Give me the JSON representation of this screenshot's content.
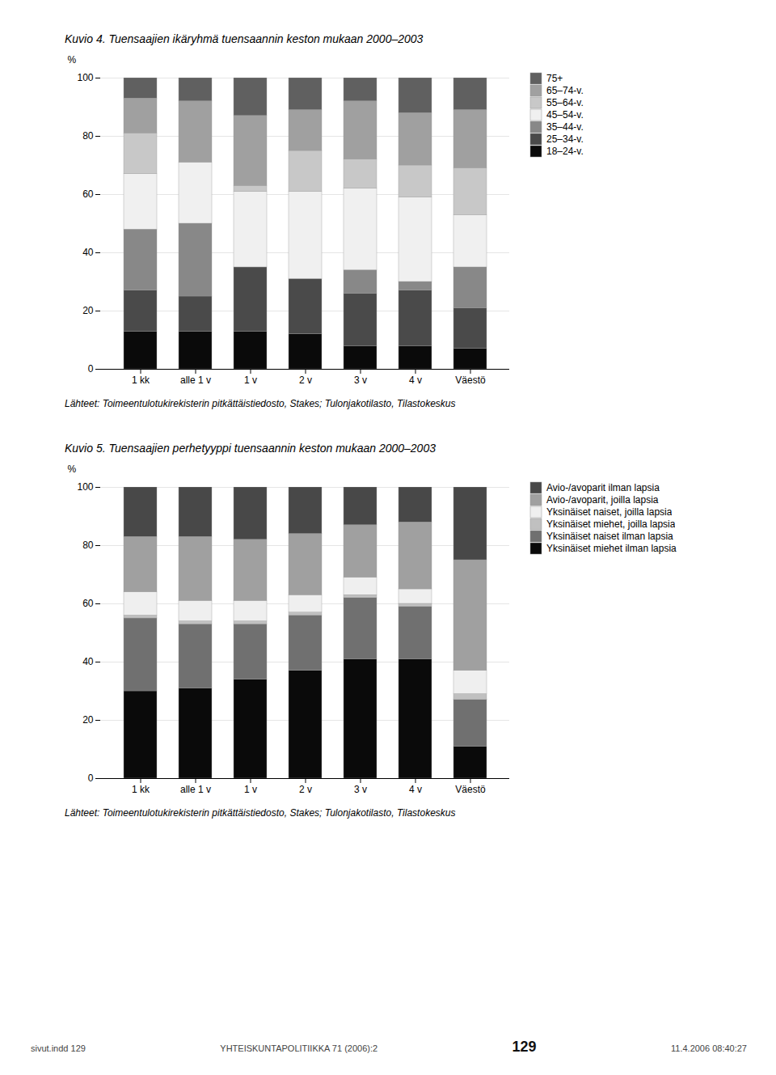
{
  "chart_data": [
    {
      "type": "bar",
      "stacked": true,
      "grid": true,
      "legend": "right",
      "title": "Kuvio 4. Tuensaajien ikäryhmä tuensaannin keston mukaan 2000–2003",
      "categories": [
        "1 kk",
        "alle 1 v",
        "1 v",
        "2 v",
        "3 v",
        "4 v",
        "Väestö"
      ],
      "ylabel": "%",
      "ylim": [
        0,
        100
      ],
      "yticks": [
        0,
        20,
        40,
        60,
        80,
        100
      ],
      "series": [
        {
          "name": "18–24-v.",
          "color": "#0a0a0a",
          "values": [
            13,
            13,
            13,
            12,
            8,
            8,
            7
          ]
        },
        {
          "name": "25–34-v.",
          "color": "#4a4a4a",
          "values": [
            14,
            12,
            22,
            19,
            18,
            19,
            14
          ]
        },
        {
          "name": "35–44-v.",
          "color": "#888888",
          "values": [
            21,
            25,
            0,
            0,
            8,
            3,
            14
          ]
        },
        {
          "name": "45–54-v.",
          "color": "#f0f0f0",
          "values": [
            19,
            21,
            26,
            30,
            28,
            29,
            18
          ]
        },
        {
          "name": "55–64-v.",
          "color": "#c8c8c8",
          "values": [
            14,
            0,
            2,
            14,
            10,
            11,
            16
          ]
        },
        {
          "name": "65–74-v.",
          "color": "#a0a0a0",
          "values": [
            12,
            21,
            24,
            14,
            20,
            18,
            20
          ]
        },
        {
          "name": "75+",
          "color": "#606060",
          "values": [
            7,
            8,
            13,
            11,
            8,
            12,
            11
          ]
        }
      ],
      "annotations": [
        "Lähteet: Toimeentulotukirekisterin pitkättäistiedosto, Stakes; Tulonjakotilasto, Tilastokeskus"
      ]
    },
    {
      "type": "bar",
      "stacked": true,
      "grid": true,
      "legend": "right",
      "title": "Kuvio 5. Tuensaajien perhetyyppi tuensaannin keston mukaan 2000–2003",
      "categories": [
        "1 kk",
        "alle 1 v",
        "1 v",
        "2 v",
        "3 v",
        "4 v",
        "Väestö"
      ],
      "ylabel": "%",
      "ylim": [
        0,
        100
      ],
      "yticks": [
        0,
        20,
        40,
        60,
        80,
        100
      ],
      "series": [
        {
          "name": "Yksinäiset miehet ilman lapsia",
          "color": "#0a0a0a",
          "values": [
            30,
            31,
            34,
            37,
            41,
            41,
            11
          ]
        },
        {
          "name": "Yksinäiset naiset ilman lapsia",
          "color": "#707070",
          "values": [
            25,
            22,
            19,
            19,
            21,
            18,
            16
          ]
        },
        {
          "name": "Yksinäiset miehet, joilla lapsia",
          "color": "#c0c0c0",
          "values": [
            1,
            1,
            1,
            1,
            1,
            1,
            2
          ]
        },
        {
          "name": "Yksinäiset naiset, joilla lapsia",
          "color": "#efefef",
          "values": [
            8,
            7,
            7,
            6,
            6,
            5,
            8
          ]
        },
        {
          "name": "Avio-/avoparit, joilla lapsia",
          "color": "#a0a0a0",
          "values": [
            19,
            22,
            21,
            21,
            18,
            23,
            38
          ]
        },
        {
          "name": "Avio-/avoparit ilman lapsia",
          "color": "#484848",
          "values": [
            17,
            17,
            18,
            16,
            13,
            12,
            25
          ]
        }
      ],
      "annotations": [
        "Lähteet: Toimeentulotukirekisterin pitkättäistiedosto, Stakes; Tulonjakotilasto, Tilastokeskus",
        "sivut.indd  129",
        "YHTEISKUNTAPOLITIIKKA 71 (2006):2",
        "129",
        "11.4.2006   08:40:27"
      ]
    }
  ]
}
